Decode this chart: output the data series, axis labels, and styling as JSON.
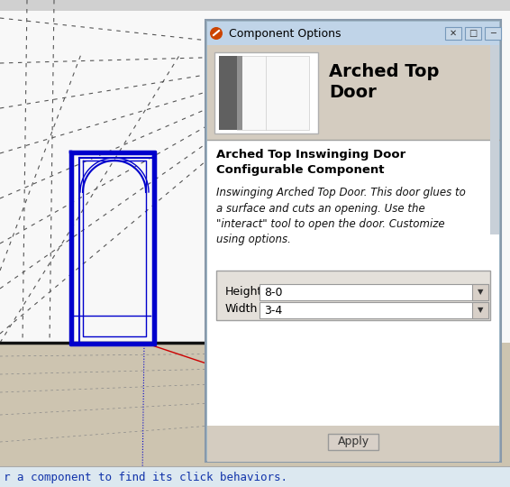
{
  "fig_width": 5.66,
  "fig_height": 5.4,
  "dpi": 100,
  "dialog_title": "Component Options",
  "component_name": "Arched Top\nDoor",
  "bold_title": "Arched Top Inswinging Door\nConfigurable Component",
  "italic_desc": "Inswinging Arched Top Door. This door glues to\na surface and cuts an opening. Use the\n\"interact\" tool to open the door. Customize\nusing options.",
  "field1_label": "Height",
  "field1_value": "8-0",
  "field2_label": "Width",
  "field2_value": "3-4",
  "apply_button": "Apply",
  "status_bar_text": "r a component to find its click behaviors.",
  "door_blue": "#0000cc",
  "bg_sketchup_upper": "#f8f8f8",
  "bg_sketchup_lower": "#cdc4b0",
  "wall_color": "#f0f0f0",
  "status_bg": "#dce8f0",
  "dlg_border": "#a0b8c8",
  "dlg_titlebar": "#c0d4e8",
  "dlg_header_bg": "#d4ccc0",
  "dlg_body_bg": "#ffffff",
  "dlg_footer_bg": "#d4ccc0",
  "dropdown_bg": "#ffffff",
  "dropdown_arrow_bg": "#d8d0c8",
  "apply_bg": "#d8d0c8",
  "icon_color": "#cc4400"
}
